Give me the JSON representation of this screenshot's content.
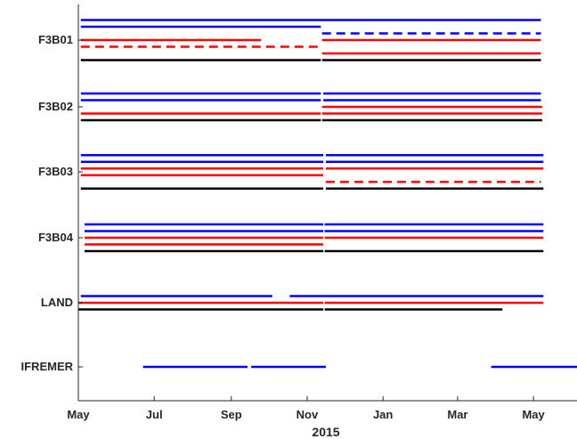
{
  "chart_data": {
    "type": "timeline",
    "xlabel": "2015",
    "x_ticks": [
      "May",
      "Jul",
      "Sep",
      "Nov",
      "Jan",
      "Mar",
      "May"
    ],
    "x_tick_dates": [
      "2015-05-01",
      "2015-07-01",
      "2015-09-01",
      "2015-11-01",
      "2016-01-01",
      "2016-03-01",
      "2016-05-01"
    ],
    "xlim": [
      "2015-05-01",
      "2016-06-05"
    ],
    "categories": [
      "F3B01",
      "F3B02",
      "F3B03",
      "F3B04",
      "LAND",
      "IFREMER"
    ],
    "colors": {
      "blue": "#0000ff",
      "red": "#ff0000",
      "black": "#000000",
      "axis": "#262626"
    },
    "rows": [
      {
        "label": "F3B01",
        "lines": [
          {
            "color": "blue",
            "style": "solid",
            "segments": [
              [
                "2015-05-03",
                "2016-05-07"
              ]
            ]
          },
          {
            "color": "blue",
            "style": "solid",
            "segments": [
              [
                "2015-05-03",
                "2015-11-12"
              ]
            ]
          },
          {
            "color": "blue",
            "style": "dashed",
            "segments": [
              [
                "2015-11-13",
                "2016-05-07"
              ]
            ]
          },
          {
            "color": "red",
            "style": "solid",
            "segments": [
              [
                "2015-05-03",
                "2015-09-25"
              ],
              [
                "2015-11-13",
                "2016-05-07"
              ]
            ]
          },
          {
            "color": "red",
            "style": "dashed",
            "segments": [
              [
                "2015-05-03",
                "2015-11-12"
              ]
            ]
          },
          {
            "color": "red",
            "style": "solid",
            "segments": [
              [
                "2015-11-13",
                "2016-05-07"
              ]
            ]
          },
          {
            "color": "black",
            "style": "solid",
            "segments": [
              [
                "2015-05-03",
                "2015-11-12"
              ],
              [
                "2015-11-13",
                "2016-05-07"
              ]
            ]
          }
        ]
      },
      {
        "label": "F3B02",
        "lines": [
          {
            "color": "blue",
            "style": "solid",
            "segments": [
              [
                "2015-05-03",
                "2015-11-12"
              ],
              [
                "2015-11-14",
                "2016-05-07"
              ]
            ]
          },
          {
            "color": "blue",
            "style": "solid",
            "segments": [
              [
                "2015-05-03",
                "2015-11-12"
              ],
              [
                "2015-11-14",
                "2016-05-07"
              ]
            ]
          },
          {
            "color": "red",
            "style": "solid",
            "segments": [
              [
                "2015-11-13",
                "2016-05-08"
              ]
            ]
          },
          {
            "color": "red",
            "style": "solid",
            "segments": [
              [
                "2015-05-03",
                "2015-11-12"
              ],
              [
                "2015-11-13",
                "2016-05-08"
              ]
            ]
          },
          {
            "color": "black",
            "style": "solid",
            "segments": [
              [
                "2015-05-03",
                "2015-11-12"
              ],
              [
                "2015-11-13",
                "2016-05-08"
              ]
            ]
          }
        ]
      },
      {
        "label": "F3B03",
        "lines": [
          {
            "color": "blue",
            "style": "solid",
            "segments": [
              [
                "2015-05-03",
                "2015-11-14"
              ],
              [
                "2015-11-16",
                "2016-05-09"
              ]
            ]
          },
          {
            "color": "blue",
            "style": "solid",
            "segments": [
              [
                "2015-05-03",
                "2015-11-14"
              ],
              [
                "2015-11-16",
                "2016-05-09"
              ]
            ]
          },
          {
            "color": "red",
            "style": "solid",
            "segments": [
              [
                "2015-05-03",
                "2015-11-14"
              ],
              [
                "2015-11-16",
                "2016-05-09"
              ]
            ]
          },
          {
            "color": "red",
            "style": "solid",
            "segments": [
              [
                "2015-05-03",
                "2015-11-14"
              ]
            ]
          },
          {
            "color": "red",
            "style": "dashed",
            "segments": [
              [
                "2015-11-16",
                "2016-05-07"
              ]
            ]
          },
          {
            "color": "black",
            "style": "solid",
            "segments": [
              [
                "2015-05-03",
                "2015-11-14"
              ],
              [
                "2015-11-16",
                "2016-05-09"
              ]
            ]
          }
        ]
      },
      {
        "label": "F3B04",
        "lines": [
          {
            "color": "blue",
            "style": "solid",
            "segments": [
              [
                "2015-05-06",
                "2015-11-14"
              ],
              [
                "2015-11-15",
                "2016-05-09"
              ]
            ]
          },
          {
            "color": "blue",
            "style": "solid",
            "segments": [
              [
                "2015-05-06",
                "2015-11-14"
              ],
              [
                "2015-11-15",
                "2016-05-09"
              ]
            ]
          },
          {
            "color": "red",
            "style": "solid",
            "segments": [
              [
                "2015-05-06",
                "2015-11-14"
              ],
              [
                "2015-11-15",
                "2016-05-09"
              ]
            ]
          },
          {
            "color": "red",
            "style": "solid",
            "segments": [
              [
                "2015-05-06",
                "2015-11-14"
              ]
            ]
          },
          {
            "color": "black",
            "style": "solid",
            "segments": [
              [
                "2015-05-06",
                "2015-11-14"
              ],
              [
                "2015-11-15",
                "2016-05-09"
              ]
            ]
          }
        ]
      },
      {
        "label": "LAND",
        "lines": [
          {
            "color": "blue",
            "style": "solid",
            "segments": [
              [
                "2015-05-03",
                "2015-10-04"
              ],
              [
                "2015-10-18",
                "2016-05-09"
              ]
            ]
          },
          {
            "color": "red",
            "style": "solid",
            "segments": [
              [
                "2015-05-01",
                "2015-11-14"
              ],
              [
                "2015-11-15",
                "2016-05-09"
              ]
            ]
          },
          {
            "color": "black",
            "style": "solid",
            "segments": [
              [
                "2015-05-01",
                "2015-11-14"
              ],
              [
                "2015-11-15",
                "2016-04-06"
              ]
            ]
          }
        ]
      },
      {
        "label": "IFREMER",
        "lines": [
          {
            "color": "blue",
            "style": "solid",
            "segments": [
              [
                "2015-06-22",
                "2015-09-14"
              ],
              [
                "2015-09-17",
                "2015-11-16"
              ],
              [
                "2016-03-28",
                "2016-06-05"
              ]
            ]
          }
        ]
      }
    ]
  }
}
